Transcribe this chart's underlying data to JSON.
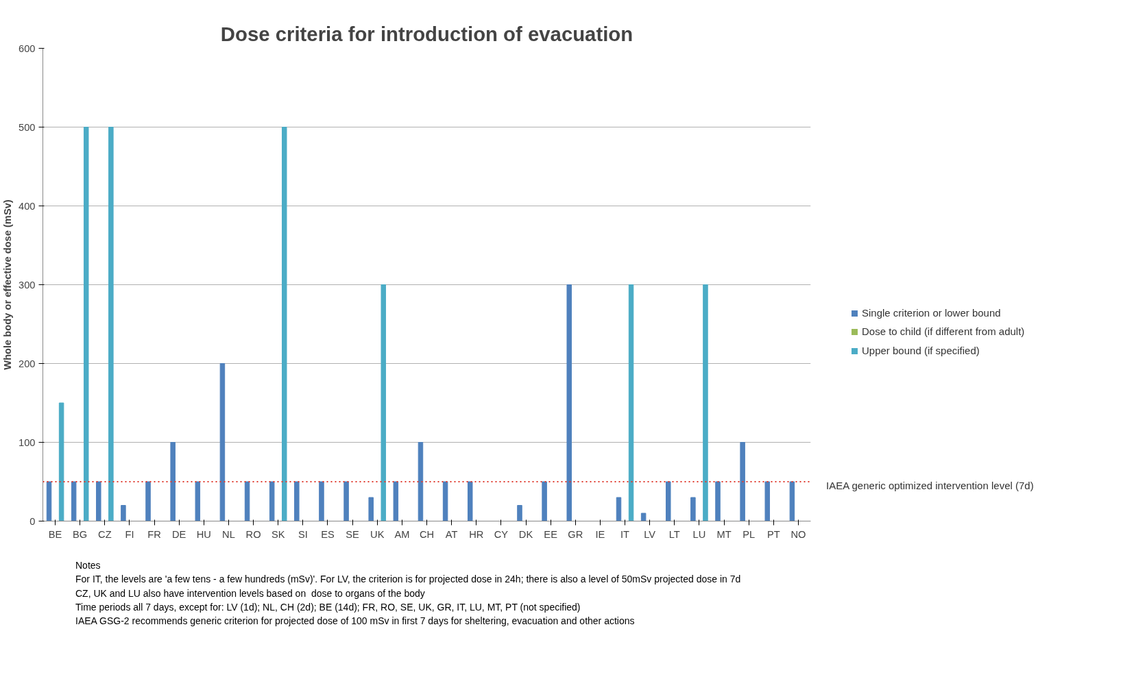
{
  "chart_data": {
    "type": "bar",
    "title": "Dose criteria for introduction of evacuation",
    "ylabel": "Whole body or effective dose (mSv)",
    "categories": [
      "BE",
      "BG",
      "CZ",
      "FI",
      "FR",
      "DE",
      "HU",
      "NL",
      "RO",
      "SK",
      "SI",
      "ES",
      "SE",
      "UK",
      "AM",
      "CH",
      "AT",
      "HR",
      "CY",
      "DK",
      "EE",
      "GR",
      "IE",
      "IT",
      "LV",
      "LT",
      "LU",
      "MT",
      "PL",
      "PT",
      "NO"
    ],
    "series": [
      {
        "name": "Single criterion or lower bound",
        "color": "#4f81bd",
        "values": [
          50,
          50,
          50,
          20,
          50,
          100,
          50,
          200,
          50,
          50,
          50,
          50,
          50,
          30,
          50,
          100,
          50,
          50,
          null,
          20,
          50,
          300,
          null,
          30,
          10,
          50,
          30,
          50,
          100,
          50,
          50
        ]
      },
      {
        "name": "Dose to child (if different from adult)",
        "color": "#9bbb59",
        "values": [
          null,
          null,
          null,
          null,
          null,
          null,
          null,
          null,
          null,
          null,
          null,
          null,
          null,
          null,
          null,
          null,
          null,
          null,
          null,
          null,
          null,
          null,
          null,
          null,
          null,
          null,
          null,
          null,
          null,
          null,
          null
        ]
      },
      {
        "name": "Upper bound (if specified)",
        "color": "#4bacc6",
        "values": [
          150,
          500,
          500,
          null,
          null,
          null,
          null,
          null,
          null,
          500,
          null,
          null,
          null,
          300,
          null,
          null,
          null,
          null,
          null,
          null,
          null,
          null,
          null,
          300,
          null,
          null,
          300,
          null,
          null,
          null,
          null
        ]
      }
    ],
    "ylim": [
      0,
      600
    ],
    "yticks": [
      0,
      100,
      200,
      300,
      400,
      500,
      600
    ],
    "grid": "y",
    "legend": "right",
    "ref_lines": [
      {
        "axis": "y",
        "value": 50,
        "label": "IAEA generic optimized intervention level (7d)",
        "color": "#e03c31",
        "line_style": "dotted"
      }
    ],
    "annotations": [
      "Notes",
      "For IT, the levels are 'a few tens - a few hundreds (mSv)'. For LV, the criterion is for projected dose in 24h; there is also a level of 50mSv projected dose in 7d",
      "CZ, UK and LU also have intervention levels based on  dose to organs of the body",
      "Time periods all 7 days, except for: LV (1d); NL, CH (2d); BE (14d); FR, RO, SE, UK, GR, IT, LU, MT, PT (not specified)",
      "IAEA GSG-2 recommends generic criterion for projected dose of 100 mSv in first 7 days for sheltering, evacuation and other actions"
    ]
  }
}
